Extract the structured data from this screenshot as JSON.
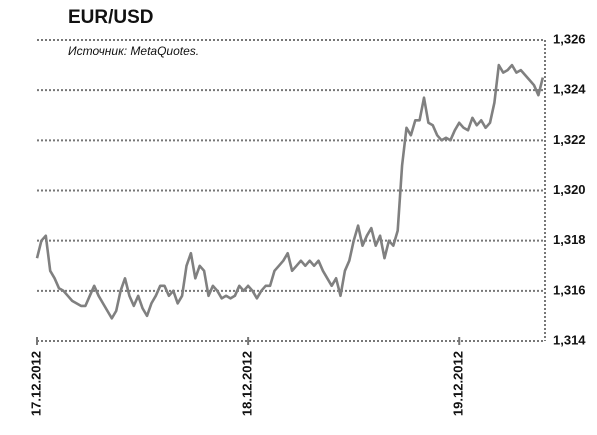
{
  "chart_data": {
    "type": "line",
    "title": "EUR/USD",
    "subtitle": "Источник: MetaQuotes.",
    "categories": [
      "17.12.2012",
      null,
      null,
      null,
      null,
      null,
      null,
      null,
      null,
      null,
      null,
      null,
      null,
      null,
      null,
      null,
      null,
      null,
      null,
      null,
      null,
      null,
      null,
      null,
      null,
      null,
      null,
      null,
      null,
      null,
      null,
      null,
      null,
      null,
      null,
      null,
      null,
      null,
      null,
      null,
      null,
      null,
      null,
      null,
      null,
      null,
      null,
      null,
      "18.12.2012",
      null,
      null,
      null,
      null,
      null,
      null,
      null,
      null,
      null,
      null,
      null,
      null,
      null,
      null,
      null,
      null,
      null,
      null,
      null,
      null,
      null,
      null,
      null,
      null,
      null,
      null,
      null,
      null,
      null,
      null,
      null,
      null,
      null,
      null,
      null,
      null,
      null,
      null,
      null,
      null,
      null,
      null,
      null,
      null,
      null,
      null,
      null,
      "19.12.2012",
      null,
      null,
      null,
      null,
      null,
      null,
      null,
      null,
      null,
      null,
      null,
      null,
      null,
      null,
      null,
      null,
      null,
      null,
      null
    ],
    "series": [
      {
        "name": "EUR/USD",
        "color": "#808080",
        "values": [
          1.3173,
          1.318,
          1.3182,
          1.3168,
          1.3165,
          1.3161,
          1.316,
          1.3158,
          1.3156,
          1.3155,
          1.3154,
          1.3154,
          1.3158,
          1.3162,
          1.3158,
          1.3155,
          1.3152,
          1.3149,
          1.3152,
          1.316,
          1.3165,
          1.3158,
          1.3154,
          1.3158,
          1.3153,
          1.315,
          1.3155,
          1.3158,
          1.3162,
          1.3162,
          1.3158,
          1.316,
          1.3155,
          1.3158,
          1.317,
          1.3175,
          1.3165,
          1.317,
          1.3168,
          1.3158,
          1.3162,
          1.316,
          1.3157,
          1.3158,
          1.3157,
          1.3158,
          1.3162,
          1.316,
          1.3162,
          1.316,
          1.3157,
          1.316,
          1.3162,
          1.3162,
          1.3168,
          1.317,
          1.3172,
          1.3175,
          1.3168,
          1.317,
          1.3172,
          1.317,
          1.3172,
          1.317,
          1.3172,
          1.3168,
          1.3165,
          1.3162,
          1.3165,
          1.3158,
          1.3168,
          1.3172,
          1.318,
          1.3186,
          1.3178,
          1.3182,
          1.3185,
          1.3178,
          1.3182,
          1.3173,
          1.318,
          1.3178,
          1.3184,
          1.321,
          1.3225,
          1.3222,
          1.3228,
          1.3228,
          1.3237,
          1.3227,
          1.3226,
          1.3222,
          1.322,
          1.3221,
          1.322,
          1.3224,
          1.3227,
          1.3225,
          1.3224,
          1.3229,
          1.3226,
          1.3228,
          1.3225,
          1.3227,
          1.3235,
          1.325,
          1.3247,
          1.3248,
          1.325,
          1.3247,
          1.3248,
          1.3246,
          1.3244,
          1.3242,
          1.3238,
          1.3245
        ]
      }
    ],
    "ylim": [
      1.314,
      1.326
    ],
    "yticks": [
      {
        "value": 1.314,
        "label": "1,314"
      },
      {
        "value": 1.316,
        "label": "1,316"
      },
      {
        "value": 1.318,
        "label": "1,318"
      },
      {
        "value": 1.32,
        "label": "1,320"
      },
      {
        "value": 1.322,
        "label": "1,322"
      },
      {
        "value": 1.324,
        "label": "1,324"
      },
      {
        "value": 1.326,
        "label": "1,326"
      }
    ],
    "grid": true
  }
}
